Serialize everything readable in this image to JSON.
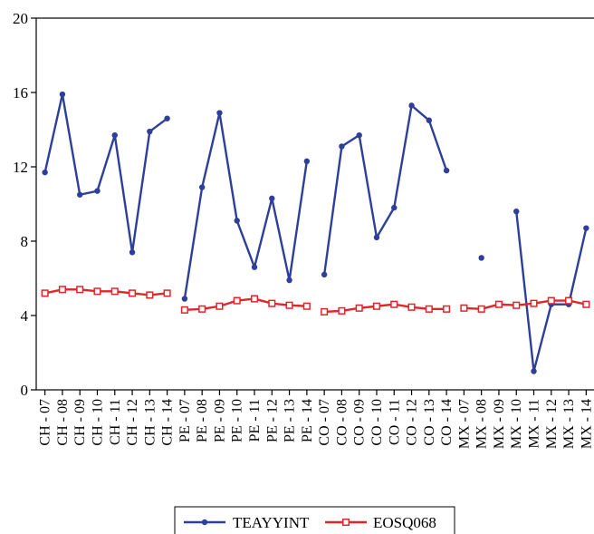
{
  "chart_data": {
    "type": "line",
    "categories": [
      "CH - 07",
      "CH - 08",
      "CH - 09",
      "CH - 10",
      "CH - 11",
      "CH - 12",
      "CH - 13",
      "CH - 14",
      "PE - 07",
      "PE - 08",
      "PE - 09",
      "PE - 10",
      "PE - 11",
      "PE - 12",
      "PE - 13",
      "PE - 14",
      "CO - 07",
      "CO - 08",
      "CO - 09",
      "CO - 10",
      "CO - 11",
      "CO - 12",
      "CO - 13",
      "CO - 14",
      "MX - 07",
      "MX - 08",
      "MX - 09",
      "MX - 10",
      "MX - 11",
      "MX - 12",
      "MX - 13",
      "MX - 14"
    ],
    "series": [
      {
        "name": "TEAYYINT",
        "color": "#2e3f9a",
        "marker": "filled-circle",
        "values": [
          11.7,
          15.9,
          10.5,
          10.7,
          13.7,
          7.4,
          13.9,
          14.6,
          4.9,
          10.9,
          14.9,
          9.1,
          6.6,
          10.3,
          5.9,
          12.3,
          6.2,
          13.1,
          13.7,
          8.2,
          9.8,
          15.3,
          14.5,
          11.8,
          null,
          7.1,
          null,
          9.6,
          1.0,
          4.6,
          4.6,
          8.7
        ]
      },
      {
        "name": "EOSQ068",
        "color": "#e0262a",
        "marker": "open-square",
        "values": [
          5.2,
          5.4,
          5.4,
          5.3,
          5.3,
          5.2,
          5.1,
          5.2,
          4.3,
          4.35,
          4.5,
          4.8,
          4.9,
          4.65,
          4.55,
          4.5,
          4.2,
          4.25,
          4.4,
          4.5,
          4.6,
          4.45,
          4.35,
          4.35,
          4.4,
          4.35,
          4.6,
          4.55,
          4.65,
          4.8,
          4.8,
          4.6
        ]
      }
    ],
    "y_ticks": [
      "0",
      "4",
      "8",
      "12",
      "16",
      "20"
    ],
    "ylim": [
      0,
      20
    ],
    "grid": false,
    "legend_position": "bottom-center",
    "title": "",
    "xlabel": "",
    "ylabel": ""
  }
}
